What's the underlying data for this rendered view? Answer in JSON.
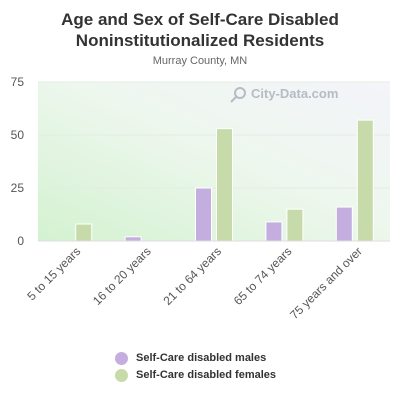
{
  "chart_data": {
    "type": "bar",
    "title": "Age and Sex of Self-Care Disabled Noninstitutionalized Residents",
    "title_lines": [
      "Age and Sex of Self-Care Disabled",
      "Noninstitutionalized Residents"
    ],
    "subtitle": "Murray County, MN",
    "categories": [
      "5 to 15 years",
      "16 to 20 years",
      "21 to 64 years",
      "65 to 74 years",
      "75 years and over"
    ],
    "series": [
      {
        "name": "Self-Care disabled males",
        "values": [
          0,
          2,
          25,
          9,
          16
        ],
        "color": "#c3aedf"
      },
      {
        "name": "Self-Care disabled females",
        "values": [
          8,
          0,
          53,
          15,
          57
        ],
        "color": "#c6dba9"
      }
    ],
    "ylim": [
      0,
      75
    ],
    "yticks": [
      0,
      25,
      50,
      75
    ],
    "xlabel": "",
    "ylabel": "",
    "grid": true,
    "legend_position": "bottom",
    "watermark": "City-Data.com"
  }
}
